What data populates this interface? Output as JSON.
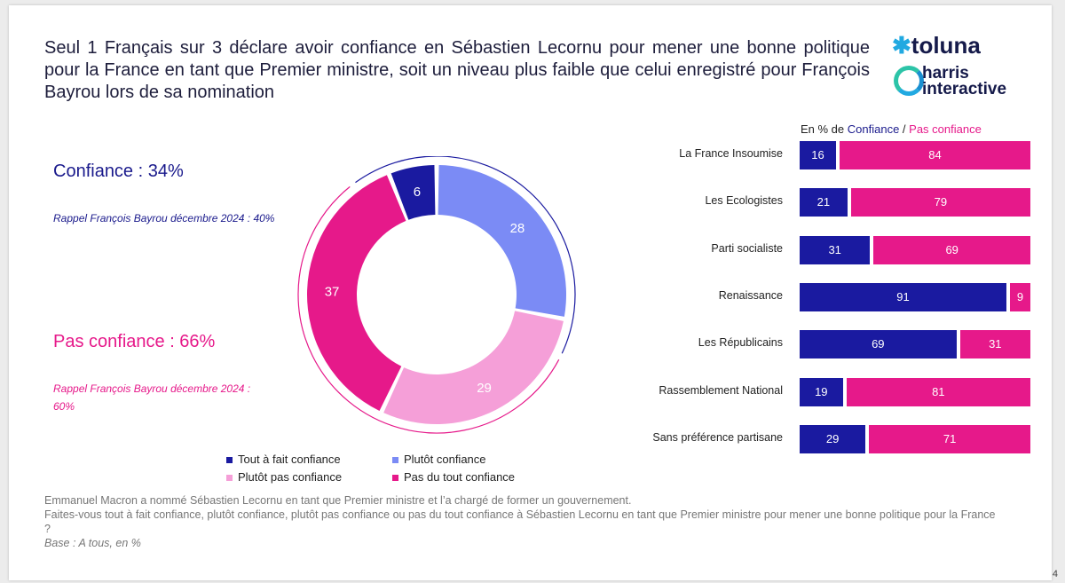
{
  "title": "Seul 1 Français sur 3 déclare avoir confiance en Sébastien Lecornu pour mener une bonne politique pour la France en tant que Premier ministre, soit un niveau plus faible que celui enregistré pour François Bayrou lors de sa nomination",
  "logo": {
    "toluna": "toluna",
    "harris_line1": "harris",
    "harris_line2": "interactive"
  },
  "left": {
    "confiance_label": "Confiance : 34%",
    "confiance_recall": "Rappel François Bayrou décembre 2024 : 40%",
    "pas_label": "Pas confiance : 66%",
    "pas_recall": "Rappel François Bayrou décembre 2024 : 60%"
  },
  "legend": [
    {
      "label": "Tout à fait confiance",
      "color": "#1a1aa0"
    },
    {
      "label": "Plutôt confiance",
      "color": "#7b8bf5"
    },
    {
      "label": "Plutôt pas confiance",
      "color": "#f59fd8"
    },
    {
      "label": "Pas du tout confiance",
      "color": "#e6198a"
    }
  ],
  "bars_header": {
    "prefix": "En % de ",
    "confiance": "Confiance",
    "sep": " / ",
    "pas": "Pas confiance"
  },
  "footnote": {
    "line1": "Emmanuel Macron a nommé Sébastien Lecornu en tant que Premier ministre et l’a chargé de former un gouvernement.",
    "line2": "Faites-vous tout à fait confiance, plutôt confiance, plutôt pas confiance ou pas du tout confiance à Sébastien Lecornu en tant que Premier ministre pour mener une bonne politique pour la France ?",
    "base": "Base : A tous, en %"
  },
  "page_number": "4",
  "chart_data": [
    {
      "type": "pie",
      "subtype": "donut",
      "slices": [
        {
          "label": "Tout à fait confiance",
          "value": 6,
          "color": "#1a1aa0"
        },
        {
          "label": "Plutôt confiance",
          "value": 28,
          "color": "#7b8bf5"
        },
        {
          "label": "Plutôt pas confiance",
          "value": 29,
          "color": "#f59fd8"
        },
        {
          "label": "Pas du tout confiance",
          "value": 37,
          "color": "#e6198a"
        }
      ]
    },
    {
      "type": "bar",
      "orientation": "horizontal",
      "stacked": true,
      "categories": [
        "La France Insoumise",
        "Les Ecologistes",
        "Parti socialiste",
        "Renaissance",
        "Les Républicains",
        "Rassemblement National",
        "Sans préférence partisane"
      ],
      "series": [
        {
          "name": "Confiance",
          "color": "#1a1aa0",
          "values": [
            16,
            21,
            31,
            91,
            69,
            19,
            29
          ]
        },
        {
          "name": "Pas confiance",
          "color": "#e6198a",
          "values": [
            84,
            79,
            69,
            9,
            31,
            81,
            71
          ]
        }
      ]
    }
  ]
}
